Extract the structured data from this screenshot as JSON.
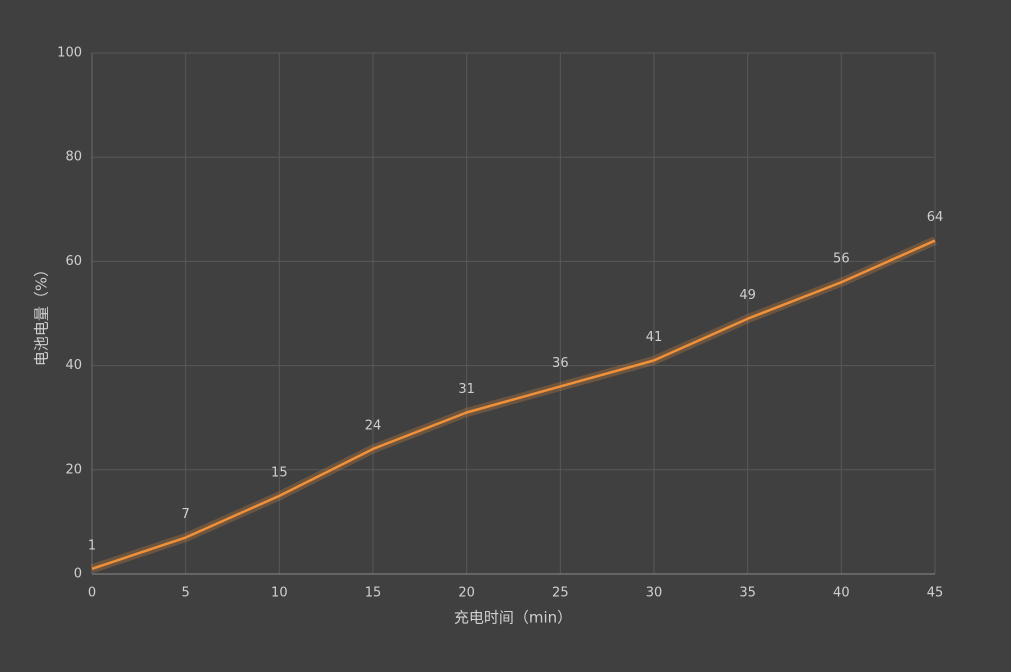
{
  "chart_data": {
    "type": "line",
    "x_label": "充电时间（min）",
    "y_label": "电池电量（%）",
    "x": [
      0,
      5,
      10,
      15,
      20,
      25,
      30,
      35,
      40,
      45
    ],
    "series": [
      {
        "color": "#f0913a",
        "values": [
          1,
          7,
          15,
          24,
          31,
          36,
          41,
          49,
          56,
          64
        ]
      }
    ],
    "xlim": [
      0,
      45
    ],
    "xticks": [
      0,
      5,
      10,
      15,
      20,
      25,
      30,
      35,
      40,
      45
    ],
    "ylim": [
      0,
      100
    ],
    "yticks": [
      0,
      20,
      40,
      60,
      80,
      100
    ],
    "grid": true
  }
}
